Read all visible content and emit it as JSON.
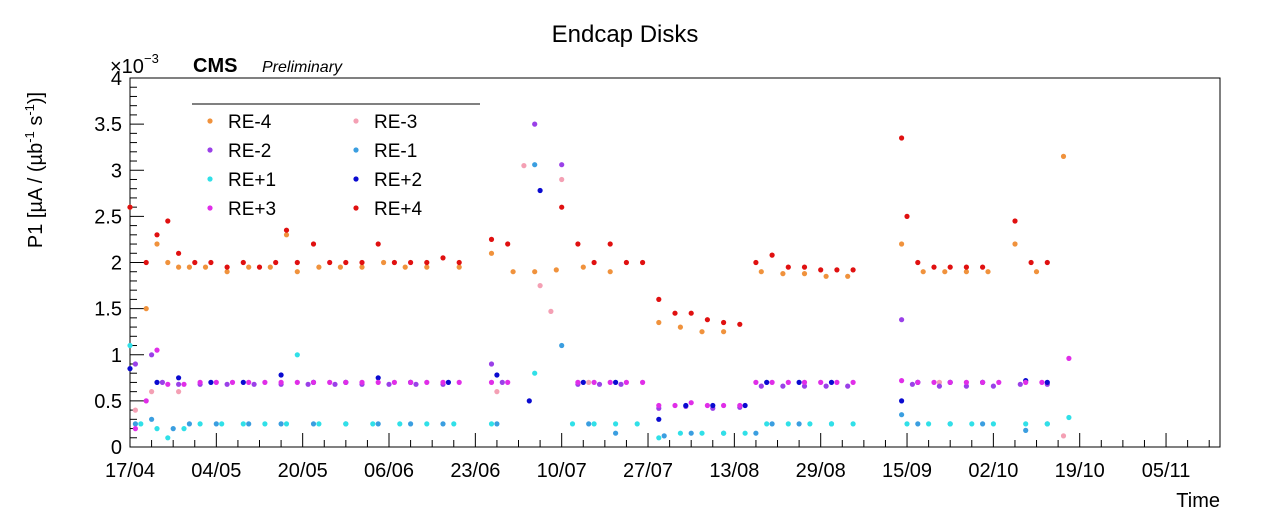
{
  "title": "Endcap Disks",
  "experiment": "CMS",
  "status": "Preliminary",
  "exponent_base": "×10",
  "exponent_power": "−3",
  "xlabel": "Time",
  "ylabel": {
    "main": "P1 [µA / (µb",
    "sup1": "-1",
    "mid": " s",
    "sup2": "-1",
    "end": ")]"
  },
  "colors": {
    "re_m4": "#f0923c",
    "re_m3": "#f4a0b4",
    "re_m2": "#9a40e8",
    "re_m1": "#3a9ee0",
    "re_p1": "#30e0e8",
    "re_p2": "#0a0ad0",
    "re_p3": "#e02ee8",
    "re_p4": "#e01010"
  },
  "chart_data": {
    "type": "scatter",
    "title": "Endcap Disks",
    "xlabel": "Time",
    "ylabel": "P1 [µA / (µb⁻¹ s⁻¹)]",
    "y_multiplier": "×10⁻³",
    "ylim": [
      0,
      4
    ],
    "yticks": [
      "0",
      "0.5",
      "1",
      "1.5",
      "2",
      "2.5",
      "3",
      "3.5",
      "4"
    ],
    "xticks": [
      "17/04",
      "04/05",
      "20/05",
      "06/06",
      "23/06",
      "10/07",
      "27/07",
      "13/08",
      "29/08",
      "15/09",
      "02/10",
      "19/10",
      "05/11"
    ],
    "grid": false,
    "legend_position": "top-left",
    "series": [
      {
        "name": "RE-4",
        "color": "#f0923c",
        "points": [
          [
            0,
            2.6
          ],
          [
            3,
            1.5
          ],
          [
            5,
            2.2
          ],
          [
            7,
            2.0
          ],
          [
            9,
            1.95
          ],
          [
            11,
            1.95
          ],
          [
            14,
            1.95
          ],
          [
            18,
            1.9
          ],
          [
            22,
            1.95
          ],
          [
            26,
            1.95
          ],
          [
            29,
            2.3
          ],
          [
            31,
            1.9
          ],
          [
            35,
            1.95
          ],
          [
            39,
            1.95
          ],
          [
            43,
            1.95
          ],
          [
            47,
            2.0
          ],
          [
            51,
            1.95
          ],
          [
            55,
            1.95
          ],
          [
            61,
            1.95
          ],
          [
            67,
            2.1
          ],
          [
            71,
            1.9
          ],
          [
            75,
            1.9
          ],
          [
            79,
            1.92
          ],
          [
            84,
            1.95
          ],
          [
            89,
            1.9
          ],
          [
            98,
            1.35
          ],
          [
            102,
            1.3
          ],
          [
            106,
            1.25
          ],
          [
            110,
            1.25
          ],
          [
            117,
            1.9
          ],
          [
            121,
            1.88
          ],
          [
            125,
            1.88
          ],
          [
            129,
            1.85
          ],
          [
            133,
            1.85
          ],
          [
            143,
            2.2
          ],
          [
            147,
            1.9
          ],
          [
            151,
            1.9
          ],
          [
            155,
            1.9
          ],
          [
            159,
            1.9
          ],
          [
            164,
            2.2
          ],
          [
            168,
            1.9
          ],
          [
            173,
            3.15
          ]
        ]
      },
      {
        "name": "RE-3",
        "color": "#f4a0b4",
        "points": [
          [
            1,
            0.4
          ],
          [
            4,
            0.6
          ],
          [
            9,
            0.6
          ],
          [
            68,
            0.6
          ],
          [
            73,
            3.05
          ],
          [
            76,
            1.75
          ],
          [
            78,
            1.47
          ],
          [
            80,
            2.9
          ],
          [
            85,
            0.7
          ],
          [
            150,
            0.7
          ],
          [
            173,
            0.12
          ]
        ]
      },
      {
        "name": "RE-2",
        "color": "#9a40e8",
        "points": [
          [
            1,
            0.9
          ],
          [
            4,
            1.0
          ],
          [
            6,
            0.7
          ],
          [
            9,
            0.68
          ],
          [
            13,
            0.68
          ],
          [
            18,
            0.68
          ],
          [
            23,
            0.68
          ],
          [
            28,
            0.68
          ],
          [
            33,
            0.68
          ],
          [
            38,
            0.68
          ],
          [
            43,
            0.68
          ],
          [
            48,
            0.68
          ],
          [
            53,
            0.68
          ],
          [
            58,
            0.68
          ],
          [
            67,
            0.9
          ],
          [
            69,
            0.7
          ],
          [
            75,
            3.5
          ],
          [
            80,
            3.06
          ],
          [
            83,
            0.68
          ],
          [
            87,
            0.68
          ],
          [
            91,
            0.68
          ],
          [
            98,
            0.42
          ],
          [
            103,
            0.44
          ],
          [
            108,
            0.42
          ],
          [
            113,
            0.43
          ],
          [
            117,
            0.66
          ],
          [
            121,
            0.66
          ],
          [
            125,
            0.66
          ],
          [
            129,
            0.66
          ],
          [
            133,
            0.66
          ],
          [
            143,
            1.38
          ],
          [
            145,
            0.68
          ],
          [
            150,
            0.66
          ],
          [
            155,
            0.66
          ],
          [
            160,
            0.66
          ],
          [
            165,
            0.68
          ],
          [
            170,
            0.68
          ]
        ]
      },
      {
        "name": "RE-1",
        "color": "#3a9ee0",
        "points": [
          [
            1,
            0.25
          ],
          [
            4,
            0.3
          ],
          [
            8,
            0.2
          ],
          [
            11,
            0.25
          ],
          [
            16,
            0.25
          ],
          [
            22,
            0.25
          ],
          [
            28,
            0.25
          ],
          [
            34,
            0.25
          ],
          [
            40,
            0.25
          ],
          [
            46,
            0.25
          ],
          [
            52,
            0.25
          ],
          [
            58,
            0.25
          ],
          [
            68,
            0.25
          ],
          [
            75,
            3.06
          ],
          [
            80,
            1.1
          ],
          [
            85,
            0.25
          ],
          [
            90,
            0.15
          ],
          [
            99,
            0.12
          ],
          [
            104,
            0.15
          ],
          [
            110,
            0.15
          ],
          [
            116,
            0.15
          ],
          [
            119,
            0.25
          ],
          [
            124,
            0.25
          ],
          [
            130,
            0.25
          ],
          [
            143,
            0.35
          ],
          [
            146,
            0.25
          ],
          [
            152,
            0.25
          ],
          [
            158,
            0.25
          ],
          [
            166,
            0.18
          ],
          [
            170,
            0.25
          ]
        ]
      },
      {
        "name": "RE+1",
        "color": "#30e0e8",
        "points": [
          [
            0,
            1.1
          ],
          [
            2,
            0.25
          ],
          [
            5,
            0.2
          ],
          [
            7,
            0.1
          ],
          [
            10,
            0.2
          ],
          [
            13,
            0.25
          ],
          [
            17,
            0.25
          ],
          [
            21,
            0.25
          ],
          [
            25,
            0.25
          ],
          [
            29,
            0.25
          ],
          [
            31,
            1.0
          ],
          [
            35,
            0.25
          ],
          [
            40,
            0.25
          ],
          [
            45,
            0.25
          ],
          [
            50,
            0.25
          ],
          [
            55,
            0.25
          ],
          [
            60,
            0.25
          ],
          [
            67,
            0.25
          ],
          [
            75,
            0.8
          ],
          [
            82,
            0.25
          ],
          [
            86,
            0.25
          ],
          [
            90,
            0.25
          ],
          [
            94,
            0.25
          ],
          [
            98,
            0.1
          ],
          [
            102,
            0.15
          ],
          [
            106,
            0.15
          ],
          [
            110,
            0.15
          ],
          [
            114,
            0.15
          ],
          [
            118,
            0.25
          ],
          [
            122,
            0.25
          ],
          [
            126,
            0.25
          ],
          [
            130,
            0.25
          ],
          [
            134,
            0.25
          ],
          [
            144,
            0.25
          ],
          [
            148,
            0.25
          ],
          [
            152,
            0.25
          ],
          [
            156,
            0.25
          ],
          [
            160,
            0.25
          ],
          [
            166,
            0.25
          ],
          [
            170,
            0.25
          ],
          [
            174,
            0.32
          ]
        ]
      },
      {
        "name": "RE+2",
        "color": "#0a0ad0",
        "points": [
          [
            0,
            0.85
          ],
          [
            5,
            0.7
          ],
          [
            9,
            0.75
          ],
          [
            15,
            0.7
          ],
          [
            21,
            0.7
          ],
          [
            28,
            0.78
          ],
          [
            34,
            0.7
          ],
          [
            40,
            0.7
          ],
          [
            46,
            0.75
          ],
          [
            52,
            0.7
          ],
          [
            59,
            0.7
          ],
          [
            68,
            0.78
          ],
          [
            74,
            0.5
          ],
          [
            76,
            2.78
          ],
          [
            84,
            0.7
          ],
          [
            90,
            0.7
          ],
          [
            98,
            0.3
          ],
          [
            103,
            0.45
          ],
          [
            108,
            0.45
          ],
          [
            114,
            0.45
          ],
          [
            118,
            0.7
          ],
          [
            124,
            0.7
          ],
          [
            130,
            0.7
          ],
          [
            143,
            0.5
          ],
          [
            146,
            0.7
          ],
          [
            152,
            0.7
          ],
          [
            158,
            0.7
          ],
          [
            166,
            0.72
          ],
          [
            170,
            0.7
          ]
        ]
      },
      {
        "name": "RE+3",
        "color": "#e02ee8",
        "points": [
          [
            1,
            0.2
          ],
          [
            3,
            0.5
          ],
          [
            5,
            1.05
          ],
          [
            7,
            0.68
          ],
          [
            10,
            0.68
          ],
          [
            13,
            0.7
          ],
          [
            16,
            0.7
          ],
          [
            19,
            0.7
          ],
          [
            22,
            0.7
          ],
          [
            25,
            0.7
          ],
          [
            28,
            0.7
          ],
          [
            31,
            0.7
          ],
          [
            34,
            0.7
          ],
          [
            37,
            0.7
          ],
          [
            40,
            0.7
          ],
          [
            43,
            0.7
          ],
          [
            46,
            0.7
          ],
          [
            49,
            0.7
          ],
          [
            52,
            0.7
          ],
          [
            55,
            0.7
          ],
          [
            58,
            0.7
          ],
          [
            61,
            0.7
          ],
          [
            67,
            0.7
          ],
          [
            70,
            0.7
          ],
          [
            83,
            0.7
          ],
          [
            86,
            0.7
          ],
          [
            89,
            0.7
          ],
          [
            92,
            0.7
          ],
          [
            95,
            0.7
          ],
          [
            98,
            0.45
          ],
          [
            101,
            0.45
          ],
          [
            104,
            0.48
          ],
          [
            107,
            0.45
          ],
          [
            110,
            0.45
          ],
          [
            113,
            0.45
          ],
          [
            116,
            0.7
          ],
          [
            119,
            0.7
          ],
          [
            122,
            0.7
          ],
          [
            125,
            0.7
          ],
          [
            128,
            0.7
          ],
          [
            131,
            0.7
          ],
          [
            134,
            0.7
          ],
          [
            143,
            0.72
          ],
          [
            146,
            0.7
          ],
          [
            149,
            0.7
          ],
          [
            152,
            0.7
          ],
          [
            155,
            0.7
          ],
          [
            158,
            0.7
          ],
          [
            161,
            0.7
          ],
          [
            166,
            0.7
          ],
          [
            169,
            0.7
          ],
          [
            174,
            0.96
          ]
        ]
      },
      {
        "name": "RE+4",
        "color": "#e01010",
        "points": [
          [
            0,
            2.6
          ],
          [
            3,
            2.0
          ],
          [
            5,
            2.3
          ],
          [
            7,
            2.45
          ],
          [
            9,
            2.1
          ],
          [
            12,
            2.0
          ],
          [
            15,
            2.0
          ],
          [
            18,
            1.95
          ],
          [
            21,
            2.0
          ],
          [
            24,
            1.95
          ],
          [
            27,
            2.0
          ],
          [
            29,
            2.35
          ],
          [
            31,
            2.0
          ],
          [
            34,
            2.2
          ],
          [
            37,
            2.0
          ],
          [
            40,
            2.0
          ],
          [
            43,
            2.0
          ],
          [
            46,
            2.2
          ],
          [
            49,
            2.0
          ],
          [
            52,
            2.0
          ],
          [
            55,
            2.0
          ],
          [
            58,
            2.05
          ],
          [
            61,
            2.0
          ],
          [
            67,
            2.25
          ],
          [
            70,
            2.2
          ],
          [
            80,
            2.6
          ],
          [
            83,
            2.2
          ],
          [
            86,
            2.0
          ],
          [
            89,
            2.2
          ],
          [
            92,
            2.0
          ],
          [
            95,
            2.0
          ],
          [
            98,
            1.6
          ],
          [
            101,
            1.45
          ],
          [
            104,
            1.45
          ],
          [
            107,
            1.38
          ],
          [
            110,
            1.35
          ],
          [
            113,
            1.33
          ],
          [
            116,
            2.0
          ],
          [
            119,
            2.08
          ],
          [
            122,
            1.95
          ],
          [
            125,
            1.95
          ],
          [
            128,
            1.92
          ],
          [
            131,
            1.92
          ],
          [
            134,
            1.92
          ],
          [
            143,
            3.35
          ],
          [
            144,
            2.5
          ],
          [
            146,
            2.0
          ],
          [
            149,
            1.95
          ],
          [
            152,
            1.95
          ],
          [
            155,
            1.95
          ],
          [
            158,
            1.95
          ],
          [
            164,
            2.45
          ],
          [
            167,
            2.0
          ],
          [
            170,
            2.0
          ]
        ]
      }
    ]
  }
}
